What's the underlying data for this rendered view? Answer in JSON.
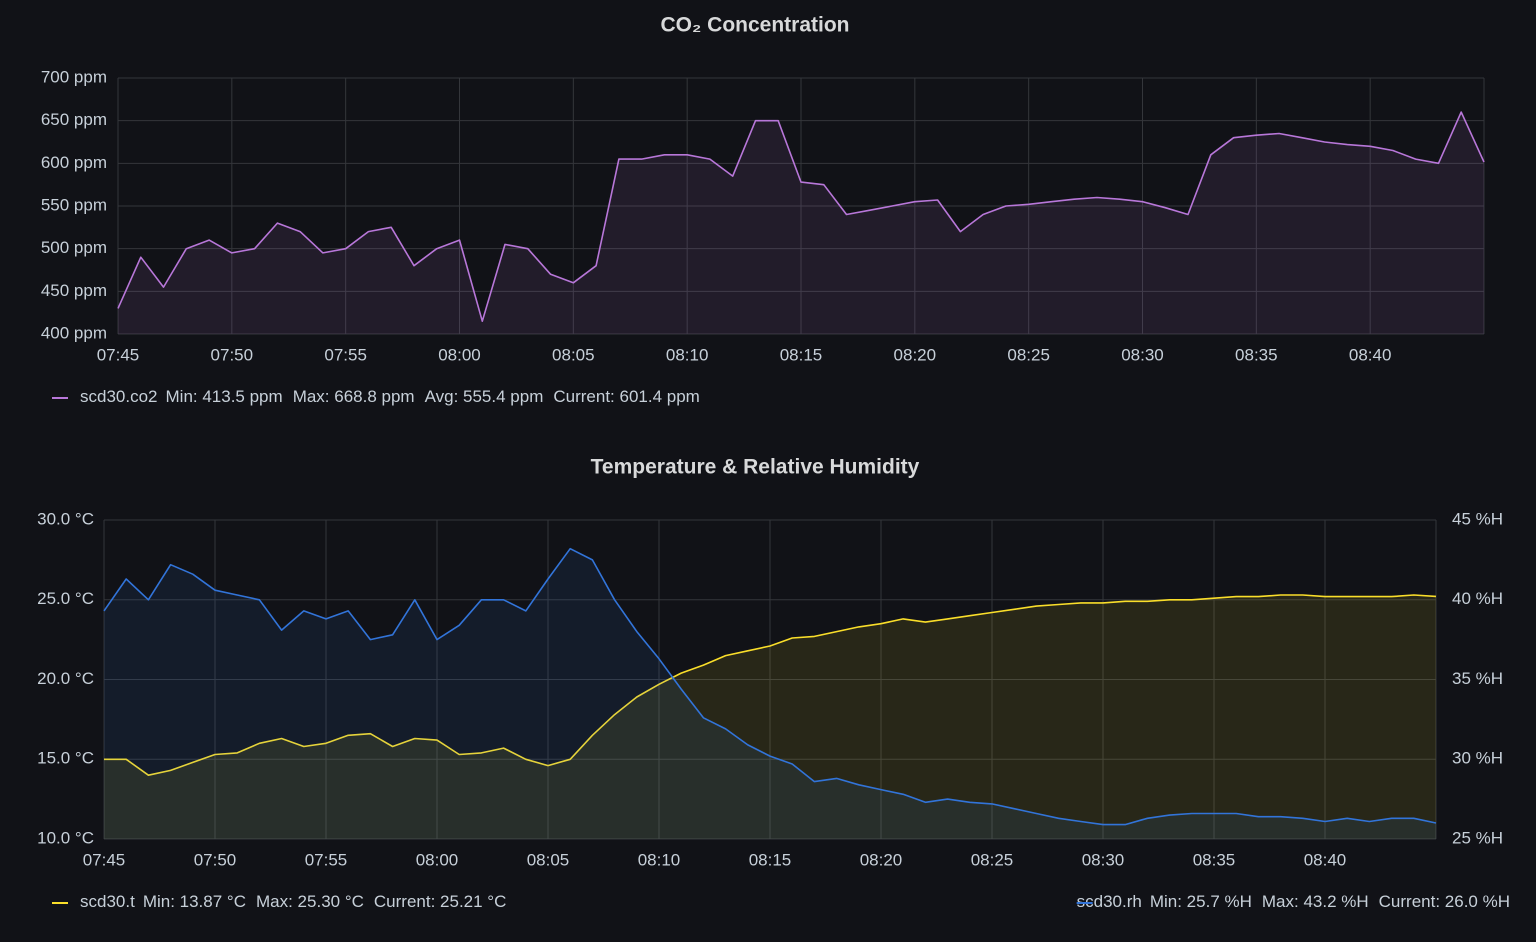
{
  "chart_data": [
    {
      "type": "line",
      "title": "CO₂ Concentration",
      "grid": true,
      "area": true,
      "x": [
        "07:45",
        "07:46",
        "07:47",
        "07:48",
        "07:49",
        "07:50",
        "07:51",
        "07:52",
        "07:53",
        "07:54",
        "07:55",
        "07:56",
        "07:57",
        "07:58",
        "07:59",
        "08:00",
        "08:01",
        "08:02",
        "08:03",
        "08:04",
        "08:05",
        "08:06",
        "08:07",
        "08:08",
        "08:09",
        "08:10",
        "08:11",
        "08:12",
        "08:13",
        "08:14",
        "08:15",
        "08:16",
        "08:17",
        "08:18",
        "08:19",
        "08:20",
        "08:21",
        "08:22",
        "08:23",
        "08:24",
        "08:25",
        "08:26",
        "08:27",
        "08:28",
        "08:29",
        "08:30",
        "08:31",
        "08:32",
        "08:33",
        "08:34",
        "08:35",
        "08:36",
        "08:37",
        "08:38",
        "08:39",
        "08:40",
        "08:41",
        "08:42",
        "08:43",
        "08:44",
        "08:45"
      ],
      "xlim": [
        "07:45",
        "08:45"
      ],
      "xticks": [
        "07:45",
        "07:50",
        "07:55",
        "08:00",
        "08:05",
        "08:10",
        "08:15",
        "08:20",
        "08:25",
        "08:30",
        "08:35",
        "08:40"
      ],
      "ylim": [
        400,
        700
      ],
      "yticks": [
        {
          "value": 400,
          "label": "400 ppm"
        },
        {
          "value": 450,
          "label": "450 ppm"
        },
        {
          "value": 500,
          "label": "500 ppm"
        },
        {
          "value": 550,
          "label": "550 ppm"
        },
        {
          "value": 600,
          "label": "600 ppm"
        },
        {
          "value": 650,
          "label": "650 ppm"
        },
        {
          "value": 700,
          "label": "700 ppm"
        }
      ],
      "series": [
        {
          "name": "scd30.co2",
          "color": "#b877d9",
          "stats": [
            "Min: 413.5 ppm",
            "Max: 668.8 ppm",
            "Avg: 555.4 ppm",
            "Current: 601.4 ppm"
          ],
          "values": [
            430,
            490,
            455,
            500,
            510,
            495,
            500,
            530,
            520,
            495,
            500,
            520,
            525,
            480,
            500,
            510,
            415,
            505,
            500,
            470,
            460,
            480,
            605,
            605,
            610,
            610,
            605,
            585,
            650,
            650,
            578,
            575,
            540,
            545,
            550,
            555,
            557,
            520,
            540,
            550,
            552,
            555,
            558,
            560,
            558,
            555,
            548,
            540,
            610,
            630,
            633,
            635,
            630,
            625,
            622,
            620,
            615,
            605,
            600,
            660,
            601.4
          ]
        }
      ]
    },
    {
      "type": "line",
      "title": "Temperature & Relative Humidity",
      "grid": true,
      "area": true,
      "x": [
        "07:45",
        "07:46",
        "07:47",
        "07:48",
        "07:49",
        "07:50",
        "07:51",
        "07:52",
        "07:53",
        "07:54",
        "07:55",
        "07:56",
        "07:57",
        "07:58",
        "07:59",
        "08:00",
        "08:01",
        "08:02",
        "08:03",
        "08:04",
        "08:05",
        "08:06",
        "08:07",
        "08:08",
        "08:09",
        "08:10",
        "08:11",
        "08:12",
        "08:13",
        "08:14",
        "08:15",
        "08:16",
        "08:17",
        "08:18",
        "08:19",
        "08:20",
        "08:21",
        "08:22",
        "08:23",
        "08:24",
        "08:25",
        "08:26",
        "08:27",
        "08:28",
        "08:29",
        "08:30",
        "08:31",
        "08:32",
        "08:33",
        "08:34",
        "08:35",
        "08:36",
        "08:37",
        "08:38",
        "08:39",
        "08:40",
        "08:41",
        "08:42",
        "08:43",
        "08:44",
        "08:45"
      ],
      "xlim": [
        "07:45",
        "08:45"
      ],
      "xticks": [
        "07:45",
        "07:50",
        "07:55",
        "08:00",
        "08:05",
        "08:10",
        "08:15",
        "08:20",
        "08:25",
        "08:30",
        "08:35",
        "08:40"
      ],
      "ylim": [
        10,
        30
      ],
      "yticks": [
        {
          "value": 10,
          "label": "10.0 °C"
        },
        {
          "value": 15,
          "label": "15.0 °C"
        },
        {
          "value": 20,
          "label": "20.0 °C"
        },
        {
          "value": 25,
          "label": "25.0 °C"
        },
        {
          "value": 30,
          "label": "30.0 °C"
        }
      ],
      "y2lim": [
        25,
        45
      ],
      "y2ticks": [
        {
          "value": 25,
          "label": "25 %H"
        },
        {
          "value": 30,
          "label": "30 %H"
        },
        {
          "value": 35,
          "label": "35 %H"
        },
        {
          "value": 40,
          "label": "40 %H"
        },
        {
          "value": 45,
          "label": "45 %H"
        }
      ],
      "series": [
        {
          "name": "scd30.t",
          "color": "#fade2a",
          "axis": "y",
          "stats": [
            "Min: 13.87 °C",
            "Max: 25.30 °C",
            "Current: 25.21 °C"
          ],
          "values": [
            15.0,
            15.0,
            14.0,
            14.3,
            14.8,
            15.3,
            15.4,
            16.0,
            16.3,
            15.8,
            16.0,
            16.5,
            16.6,
            15.8,
            16.3,
            16.2,
            15.3,
            15.4,
            15.7,
            15.0,
            14.6,
            15.0,
            16.5,
            17.8,
            18.9,
            19.7,
            20.4,
            20.9,
            21.5,
            21.8,
            22.1,
            22.6,
            22.7,
            23.0,
            23.3,
            23.5,
            23.8,
            23.6,
            23.8,
            24.0,
            24.2,
            24.4,
            24.6,
            24.7,
            24.8,
            24.8,
            24.9,
            24.9,
            25.0,
            25.0,
            25.1,
            25.2,
            25.2,
            25.3,
            25.3,
            25.2,
            25.2,
            25.2,
            25.2,
            25.3,
            25.21
          ]
        },
        {
          "name": "scd30.rh",
          "color": "#3274d9",
          "axis": "y2",
          "stats": [
            "Min: 25.7 %H",
            "Max: 43.2 %H",
            "Current: 26.0 %H"
          ],
          "values": [
            39.3,
            41.3,
            40.0,
            42.2,
            41.6,
            40.6,
            40.3,
            40.0,
            38.1,
            39.3,
            38.8,
            39.3,
            37.5,
            37.8,
            40.0,
            37.5,
            38.4,
            40.0,
            40.0,
            39.3,
            41.3,
            43.2,
            42.5,
            40.0,
            38.0,
            36.3,
            34.4,
            32.6,
            31.9,
            30.9,
            30.2,
            29.7,
            28.6,
            28.8,
            28.4,
            28.1,
            27.8,
            27.3,
            27.5,
            27.3,
            27.2,
            26.9,
            26.6,
            26.3,
            26.1,
            25.9,
            25.9,
            26.3,
            26.5,
            26.6,
            26.6,
            26.6,
            26.4,
            26.4,
            26.3,
            26.1,
            26.3,
            26.1,
            26.3,
            26.3,
            26.0
          ]
        }
      ]
    }
  ]
}
